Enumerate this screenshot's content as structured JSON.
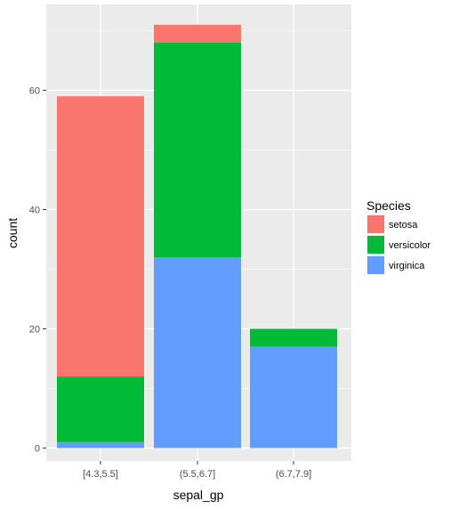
{
  "chart_data": {
    "type": "bar",
    "stacked": true,
    "categories": [
      "[4.3,5.5]",
      "(5.5,6.7]",
      "(6.7,7.9]"
    ],
    "series": [
      {
        "name": "setosa",
        "values": [
          47,
          3,
          0
        ],
        "color": "#F8766D"
      },
      {
        "name": "versicolor",
        "values": [
          11,
          36,
          3
        ],
        "color": "#00BA38"
      },
      {
        "name": "virginica",
        "values": [
          1,
          32,
          17
        ],
        "color": "#619CFF"
      }
    ],
    "xlabel": "sepal_gp",
    "ylabel": "count",
    "ylim": [
      0,
      72
    ],
    "yticks": [
      0,
      20,
      40,
      60
    ],
    "grid": true,
    "legend": {
      "title": "Species",
      "position": "right"
    },
    "panel_background": "#EBEBEB",
    "grid_color": "#FFFFFF"
  }
}
